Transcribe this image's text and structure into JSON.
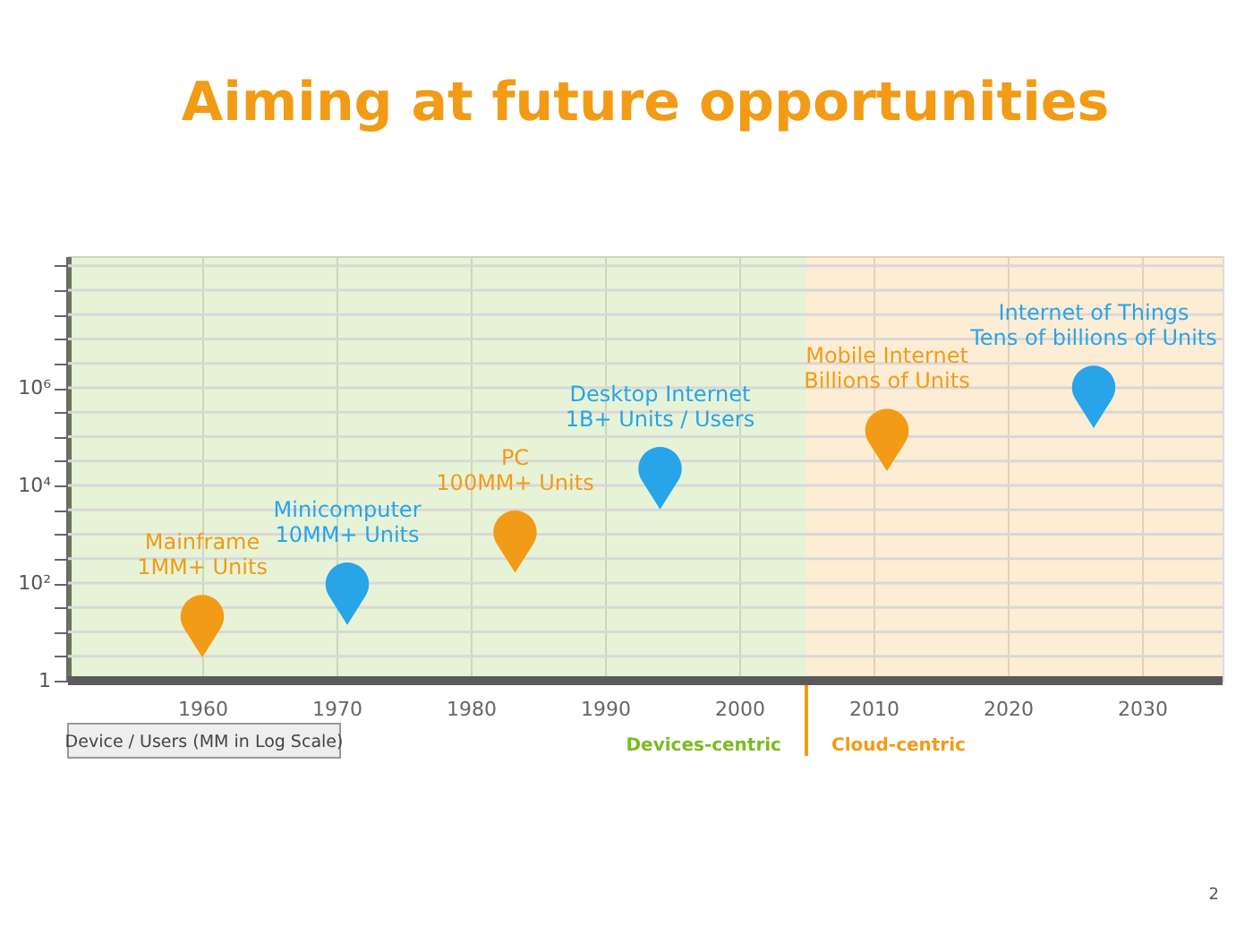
{
  "chart_data": {
    "type": "scatter",
    "title": "Aiming at future opportunities",
    "x": [
      1960,
      1970.8,
      1983.3,
      1994.1,
      2011,
      2026.4
    ],
    "values": [
      13,
      60,
      700,
      14000,
      85000,
      650000
    ],
    "colors": [
      "#f29b16",
      "#28a4e8",
      "#f29b16",
      "#28a4e8",
      "#f29b16",
      "#28a4e8"
    ],
    "log": true,
    "xlim": [
      1950,
      2036
    ],
    "xticks": [
      1960,
      1970,
      1980,
      1990,
      2000,
      2010,
      2020,
      2030
    ],
    "ylim": [
      1,
      500000000
    ],
    "yticks": [
      1,
      {
        "value": 3.162,
        "label": null
      },
      {
        "value": 10,
        "label": null
      },
      {
        "value": 31.62,
        "label": null
      },
      {
        "value": 100,
        "label": "10²"
      },
      {
        "value": 316.2,
        "label": null
      },
      {
        "value": 1000,
        "label": null
      },
      {
        "value": 3162,
        "label": null
      },
      {
        "value": 10000,
        "label": "10⁴"
      },
      {
        "value": 31620,
        "label": null
      },
      {
        "value": 100000,
        "label": null
      },
      {
        "value": 316200,
        "label": null
      },
      {
        "value": 1000000,
        "label": "10⁶"
      },
      {
        "value": 3162000,
        "label": null
      },
      {
        "value": 10000000,
        "label": null
      },
      {
        "value": 31620000,
        "label": null
      },
      {
        "value": 100000000,
        "label": null
      },
      {
        "value": 316200000,
        "label": null
      }
    ],
    "grid": true,
    "bands": [
      {
        "axis": "x",
        "from": 1950,
        "to": 2005,
        "label": "Devices-centric",
        "color": "#7cbb22"
      },
      {
        "axis": "x",
        "from": 2005,
        "to": 2036,
        "label": "Cloud-centric",
        "color": "#f29b16"
      }
    ],
    "annotations": [
      {
        "text": "Mainframe\n1MM+ Units",
        "x": 1960,
        "y": 13
      },
      {
        "text": "Minicomputer\n10MM+ Units",
        "x": 1970.8,
        "y": 60
      },
      {
        "text": "PC\n100MM+ Units",
        "x": 1983.3,
        "y": 700
      },
      {
        "text": "Desktop Internet\n1B+ Units / Users",
        "x": 1994.1,
        "y": 14000
      },
      {
        "text": "Mobile Internet\nBillions of  Units",
        "x": 2011,
        "y": 85000
      },
      {
        "text": "Internet of Things\nTens of billions of Units",
        "x": 2026.4,
        "y": 650000
      },
      "Device / Users (MM in Log Scale)",
      "2"
    ]
  }
}
